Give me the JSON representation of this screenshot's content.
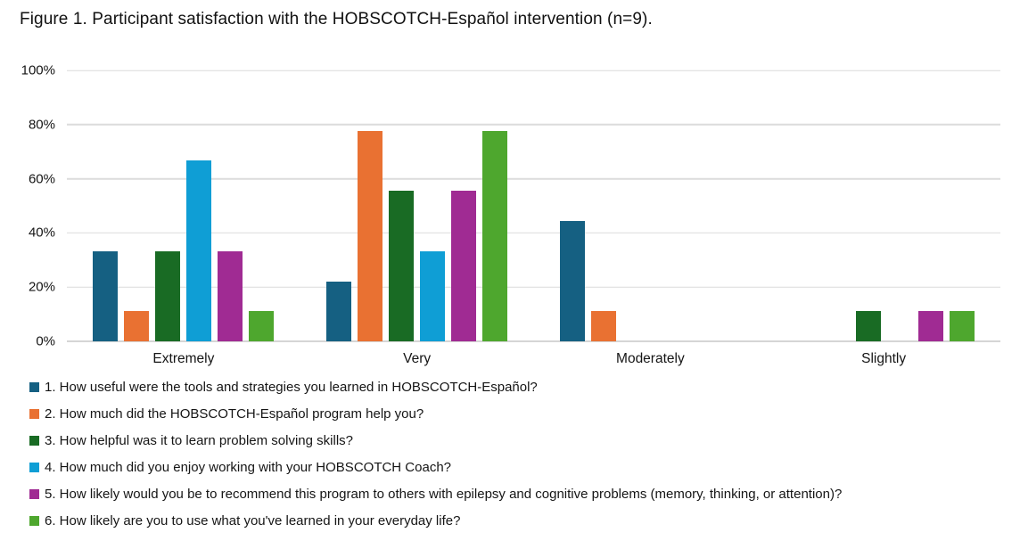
{
  "title": "Figure 1. Participant satisfaction with the HOBSCOTCH-Español intervention (n=9).",
  "colors": {
    "gridline": "#dcdcdc",
    "axis_line": "#d5d5d5",
    "text": "#151515"
  },
  "chart_data": {
    "type": "bar",
    "title": "Figure 1. Participant satisfaction with the HOBSCOTCH-Español intervention (n=9).",
    "categories": [
      "Extremely",
      "Very",
      "Moderately",
      "Slightly"
    ],
    "series": [
      {
        "name": "1. How useful were the tools and strategies you learned in HOBSCOTCH-Español?",
        "color": "#156082",
        "values": [
          33.3,
          22.2,
          44.4,
          0
        ]
      },
      {
        "name": "2. How much did the HOBSCOTCH-Español program help you?",
        "color": "#E97132",
        "values": [
          11.1,
          77.8,
          11.1,
          0
        ]
      },
      {
        "name": "3. How helpful was it to learn problem solving skills?",
        "color": "#196B24",
        "values": [
          33.3,
          55.6,
          0,
          11.1
        ]
      },
      {
        "name": "4. How much did you enjoy working with your HOBSCOTCH Coach?",
        "color": "#0F9ED5",
        "values": [
          66.7,
          33.3,
          0,
          0
        ]
      },
      {
        "name": "5. How likely would you be to recommend this program to others with epilepsy and cognitive problems (memory, thinking, or attention)?",
        "color": "#A02B93",
        "values": [
          33.3,
          55.6,
          0,
          11.1
        ]
      },
      {
        "name": "6. How likely are you to use what you've learned in your everyday life?",
        "color": "#4EA72E",
        "values": [
          11.1,
          77.8,
          0,
          11.1
        ]
      }
    ],
    "xlabel": "",
    "ylabel": "",
    "ylim": [
      0,
      100
    ],
    "y_ticks": [
      0,
      20,
      40,
      60,
      80,
      100
    ],
    "y_tick_format": "percent",
    "grid": true,
    "legend_position": "bottom-left",
    "n": 9
  }
}
